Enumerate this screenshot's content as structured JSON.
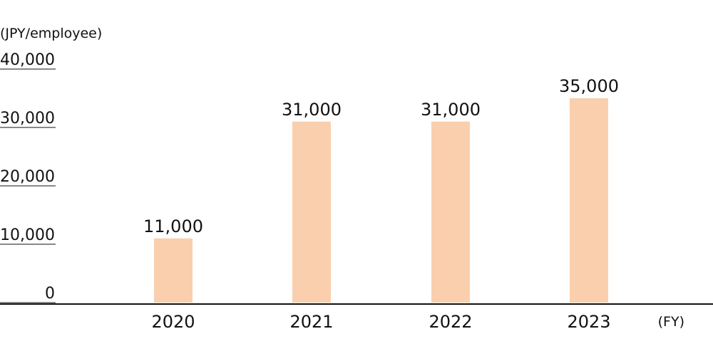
{
  "chart_data": {
    "type": "bar",
    "y_label": "(JPY/employee)",
    "x_label": "(FY)",
    "categories": [
      "2020",
      "2021",
      "2022",
      "2023"
    ],
    "values": [
      11000,
      31000,
      31000,
      35000
    ],
    "value_labels": [
      "11,000",
      "31,000",
      "31,000",
      "35,000"
    ],
    "color": "#f9cfae",
    "ylim": [
      0,
      40000
    ],
    "yticks": [
      0,
      {
        "value": 10000,
        "label": "10,000"
      },
      {
        "value": 20000,
        "label": "20,000"
      },
      {
        "value": 30000,
        "label": "30,000"
      },
      {
        "value": 40000,
        "label": "40,000"
      }
    ]
  }
}
